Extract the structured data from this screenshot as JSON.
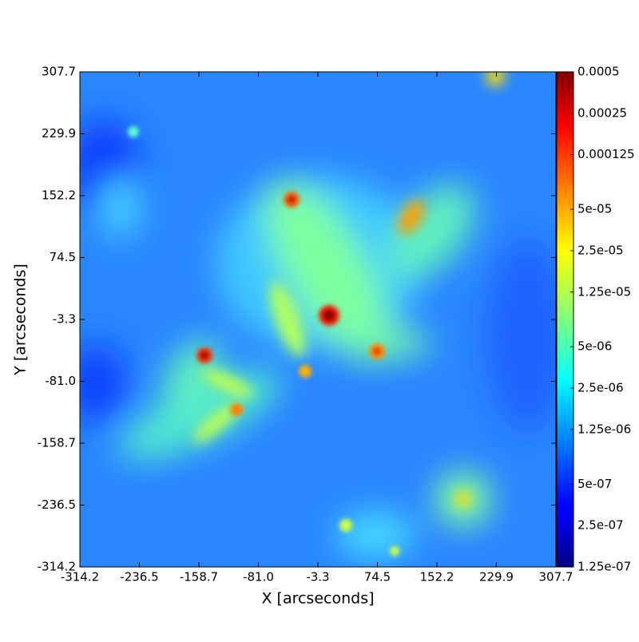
{
  "chart_data": {
    "type": "image",
    "xlabel": "X [arcseconds]",
    "ylabel": "Y [arcseconds]",
    "xlim": [
      -314.2,
      307.7
    ],
    "ylim": [
      -314.2,
      307.7
    ],
    "xticks": [
      -314.2,
      -236.5,
      -158.7,
      {
        "value": -81.0,
        "label": "-81.0"
      },
      -3.3,
      74.5,
      152.2,
      229.9,
      307.7
    ],
    "yticks": [
      -314.2,
      -236.5,
      -158.7,
      {
        "value": -81.0,
        "label": "-81.0"
      },
      -3.3,
      74.5,
      152.2,
      229.9,
      307.7
    ],
    "colormap": "jet",
    "color_scale": "log",
    "clim": [
      1.25e-07,
      0.0005
    ],
    "cticks": [
      {
        "value": 1.25e-07,
        "label": "1.25e-07"
      },
      {
        "value": 2.5e-07,
        "label": "2.5e-07"
      },
      {
        "value": 5e-07,
        "label": "5e-07"
      },
      {
        "value": 1.25e-06,
        "label": "1.25e-06"
      },
      {
        "value": 2.5e-06,
        "label": "2.5e-06"
      },
      {
        "value": 5e-06,
        "label": "5e-06"
      },
      {
        "value": 1.25e-05,
        "label": "1.25e-05"
      },
      {
        "value": 2.5e-05,
        "label": "2.5e-05"
      },
      {
        "value": 5e-05,
        "label": "5e-05"
      },
      0.000125,
      0.00025,
      0.0005
    ]
  }
}
